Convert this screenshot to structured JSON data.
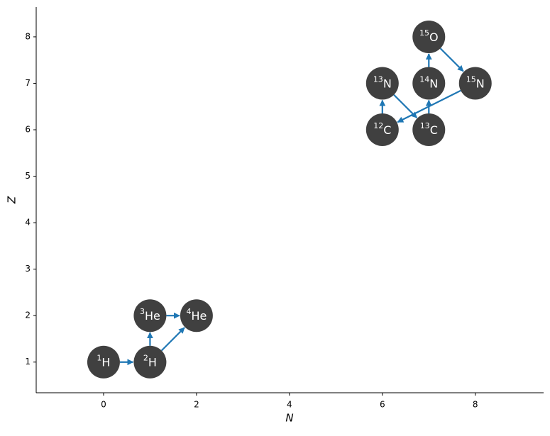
{
  "chart_data": {
    "type": "nuclide-network",
    "xlabel": "N",
    "ylabel": "Z",
    "x": [
      0,
      1,
      1,
      2,
      6,
      7,
      6,
      7,
      7,
      8
    ],
    "y": [
      1,
      1,
      2,
      2,
      6,
      6,
      7,
      7,
      8,
      7
    ],
    "isotopes": [
      {
        "mass": 1,
        "symbol": "H"
      },
      {
        "mass": 2,
        "symbol": "H"
      },
      {
        "mass": 3,
        "symbol": "He"
      },
      {
        "mass": 4,
        "symbol": "He"
      },
      {
        "mass": 12,
        "symbol": "C"
      },
      {
        "mass": 13,
        "symbol": "C"
      },
      {
        "mass": 13,
        "symbol": "N"
      },
      {
        "mass": 14,
        "symbol": "N"
      },
      {
        "mass": 15,
        "symbol": "O"
      },
      {
        "mass": 15,
        "symbol": "N"
      }
    ],
    "arrows": [
      [
        0,
        1
      ],
      [
        1,
        2
      ],
      [
        2,
        3
      ],
      [
        1,
        3
      ],
      [
        4,
        6
      ],
      [
        6,
        5
      ],
      [
        5,
        7
      ],
      [
        7,
        8
      ],
      [
        8,
        9
      ],
      [
        9,
        4
      ]
    ],
    "node_color": "#404040",
    "arrow_color": "#1f77b4",
    "xlim": [
      -1.45,
      9.47
    ],
    "ylim": [
      0.34,
      8.64
    ],
    "xticks": [
      0,
      2,
      4,
      6,
      8
    ],
    "yticks": [
      1,
      2,
      3,
      4,
      5,
      6,
      7,
      8
    ]
  }
}
